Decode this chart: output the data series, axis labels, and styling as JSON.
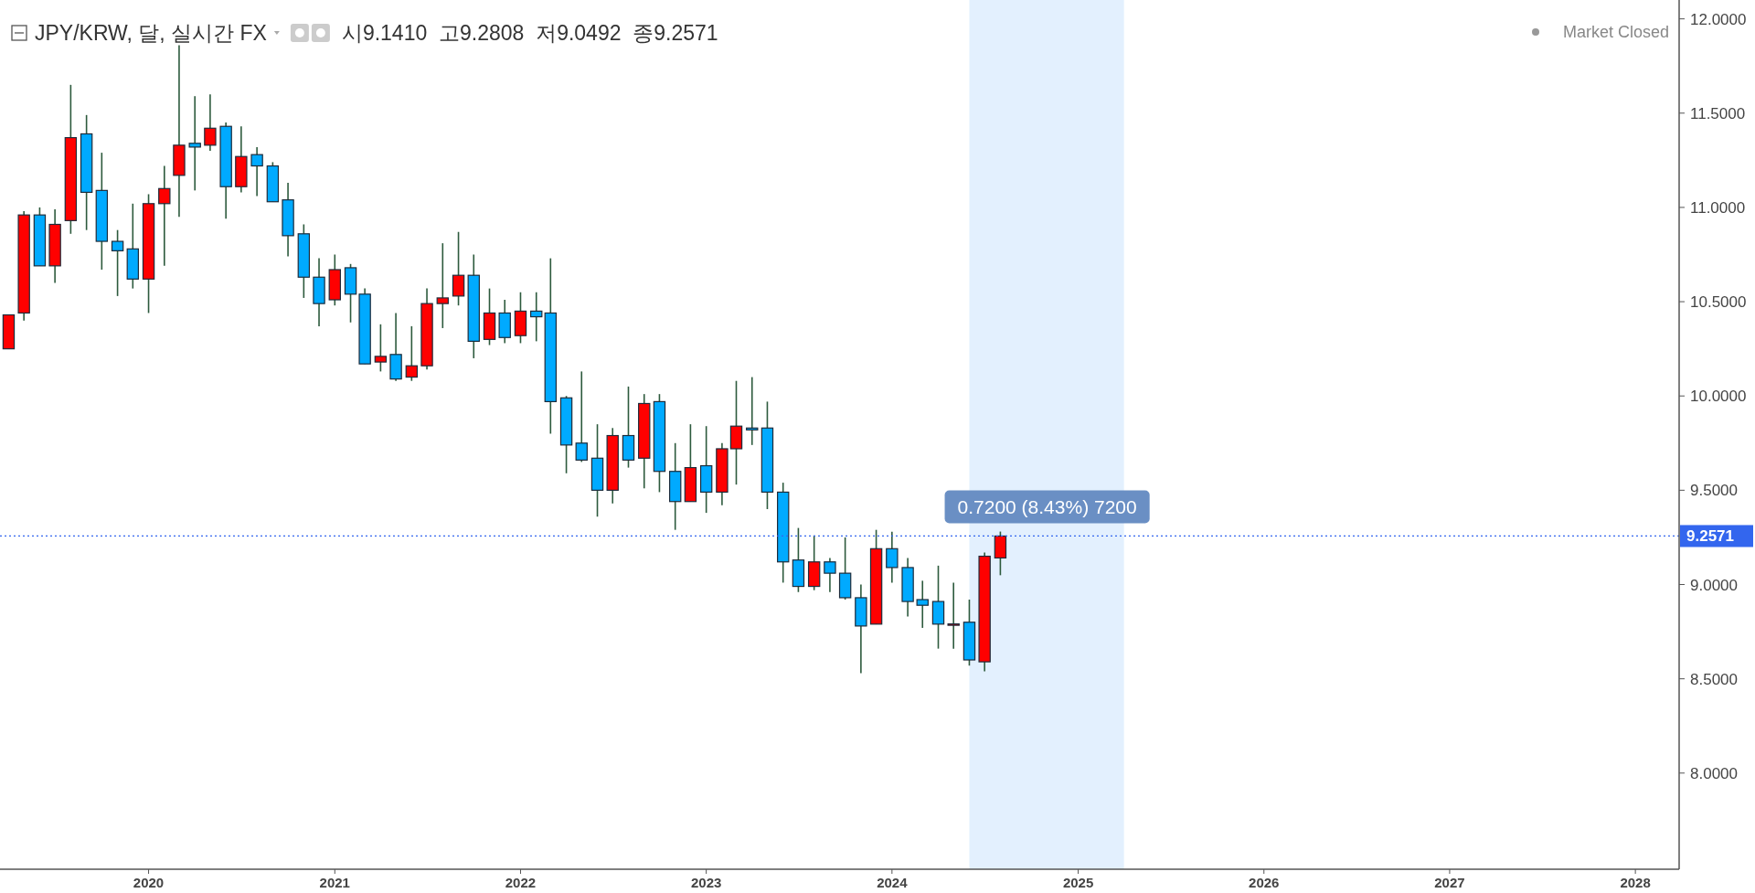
{
  "chart_data": {
    "type": "candlestick",
    "title": "JPY/KRW, 달, 실시간 FX",
    "subtitle": "시9.1410  고9.2808  저9.0492  종9.2571",
    "annotations": [
      "Market Closed",
      {
        "text": "0.7200 (8.43%) 7200",
        "x": "2024-11",
        "y": 9.2571
      }
    ],
    "x": [
      "2019-04",
      "2019-05",
      "2019-06",
      "2019-07",
      "2019-08",
      "2019-09",
      "2019-10",
      "2019-11",
      "2019-12",
      "2020-01",
      "2020-02",
      "2020-03",
      "2020-04",
      "2020-05",
      "2020-06",
      "2020-07",
      "2020-08",
      "2020-09",
      "2020-10",
      "2020-11",
      "2020-12",
      "2021-01",
      "2021-02",
      "2021-03",
      "2021-04",
      "2021-05",
      "2021-06",
      "2021-07",
      "2021-08",
      "2021-09",
      "2021-10",
      "2021-11",
      "2021-12",
      "2022-01",
      "2022-02",
      "2022-03",
      "2022-04",
      "2022-05",
      "2022-06",
      "2022-07",
      "2022-08",
      "2022-09",
      "2022-10",
      "2022-11",
      "2022-12",
      "2023-01",
      "2023-02",
      "2023-03",
      "2023-04",
      "2023-05",
      "2023-06",
      "2023-07",
      "2023-08",
      "2023-09",
      "2023-10",
      "2023-11",
      "2023-12",
      "2024-01",
      "2024-02",
      "2024-03",
      "2024-04",
      "2024-05",
      "2024-06",
      "2024-07",
      "2024-08"
    ],
    "ohlc": [
      [
        10.25,
        10.43,
        10.25,
        10.43
      ],
      [
        10.44,
        10.98,
        10.4,
        10.96
      ],
      [
        10.96,
        11.0,
        10.69,
        10.69
      ],
      [
        10.69,
        10.99,
        10.6,
        10.91
      ],
      [
        10.93,
        11.65,
        10.86,
        11.37
      ],
      [
        11.39,
        11.49,
        10.88,
        11.08
      ],
      [
        11.09,
        11.29,
        10.67,
        10.82
      ],
      [
        10.82,
        10.88,
        10.53,
        10.77
      ],
      [
        10.78,
        11.02,
        10.57,
        10.62
      ],
      [
        10.62,
        11.07,
        10.44,
        11.02
      ],
      [
        11.02,
        11.22,
        10.69,
        11.1
      ],
      [
        11.17,
        11.86,
        10.95,
        11.33
      ],
      [
        11.34,
        11.59,
        11.09,
        11.32
      ],
      [
        11.33,
        11.6,
        11.3,
        11.42
      ],
      [
        11.43,
        11.45,
        10.94,
        11.11
      ],
      [
        11.11,
        11.43,
        11.08,
        11.27
      ],
      [
        11.28,
        11.32,
        11.06,
        11.22
      ],
      [
        11.22,
        11.24,
        11.03,
        11.03
      ],
      [
        11.04,
        11.13,
        10.74,
        10.85
      ],
      [
        10.86,
        10.91,
        10.52,
        10.63
      ],
      [
        10.63,
        10.73,
        10.37,
        10.49
      ],
      [
        10.51,
        10.75,
        10.48,
        10.67
      ],
      [
        10.68,
        10.7,
        10.39,
        10.54
      ],
      [
        10.54,
        10.57,
        10.17,
        10.17
      ],
      [
        10.18,
        10.38,
        10.13,
        10.21
      ],
      [
        10.22,
        10.44,
        10.08,
        10.09
      ],
      [
        10.1,
        10.37,
        10.08,
        10.16
      ],
      [
        10.16,
        10.57,
        10.14,
        10.49
      ],
      [
        10.49,
        10.81,
        10.36,
        10.52
      ],
      [
        10.53,
        10.87,
        10.48,
        10.64
      ],
      [
        10.64,
        10.75,
        10.2,
        10.29
      ],
      [
        10.3,
        10.57,
        10.27,
        10.44
      ],
      [
        10.44,
        10.51,
        10.28,
        10.31
      ],
      [
        10.32,
        10.55,
        10.28,
        10.45
      ],
      [
        10.45,
        10.55,
        10.29,
        10.42
      ],
      [
        10.44,
        10.73,
        9.8,
        9.97
      ],
      [
        9.99,
        10.0,
        9.59,
        9.74
      ],
      [
        9.75,
        10.13,
        9.65,
        9.66
      ],
      [
        9.67,
        9.85,
        9.36,
        9.5
      ],
      [
        9.5,
        9.83,
        9.43,
        9.79
      ],
      [
        9.79,
        10.05,
        9.62,
        9.66
      ],
      [
        9.67,
        10.01,
        9.51,
        9.96
      ],
      [
        9.97,
        10.01,
        9.49,
        9.6
      ],
      [
        9.6,
        9.75,
        9.29,
        9.44
      ],
      [
        9.44,
        9.85,
        9.44,
        9.62
      ],
      [
        9.63,
        9.84,
        9.38,
        9.49
      ],
      [
        9.49,
        9.75,
        9.42,
        9.72
      ],
      [
        9.72,
        10.08,
        9.53,
        9.84
      ],
      [
        9.83,
        10.1,
        9.74,
        9.82
      ],
      [
        9.83,
        9.97,
        9.4,
        9.49
      ],
      [
        9.49,
        9.54,
        9.01,
        9.12
      ],
      [
        9.13,
        9.3,
        8.96,
        8.99
      ],
      [
        8.99,
        9.26,
        8.97,
        9.12
      ],
      [
        9.12,
        9.14,
        8.96,
        9.06
      ],
      [
        9.06,
        9.25,
        8.92,
        8.93
      ],
      [
        8.93,
        9.0,
        8.53,
        8.78
      ],
      [
        8.79,
        9.29,
        8.79,
        9.19
      ],
      [
        9.19,
        9.28,
        9.01,
        9.09
      ],
      [
        9.09,
        9.14,
        8.83,
        8.91
      ],
      [
        8.92,
        9.02,
        8.77,
        8.89
      ],
      [
        8.91,
        9.1,
        8.66,
        8.79
      ],
      [
        8.789,
        9.01,
        8.66,
        8.791
      ],
      [
        8.8,
        8.92,
        8.57,
        8.6
      ],
      [
        8.59,
        9.17,
        8.54,
        9.15
      ],
      [
        9.141,
        9.2808,
        9.0492,
        9.2571
      ]
    ],
    "colors": [
      "#ff0000",
      "#ff0000",
      "#00aaff",
      "#ff0000",
      "#ff0000",
      "#00aaff",
      "#00aaff",
      "#00aaff",
      "#00aaff",
      "#ff0000",
      "#ff0000",
      "#ff0000",
      "#00aaff",
      "#ff0000",
      "#00aaff",
      "#ff0000",
      "#00aaff",
      "#00aaff",
      "#00aaff",
      "#00aaff",
      "#00aaff",
      "#ff0000",
      "#00aaff",
      "#00aaff",
      "#ff0000",
      "#00aaff",
      "#ff0000",
      "#ff0000",
      "#ff0000",
      "#ff0000",
      "#00aaff",
      "#ff0000",
      "#00aaff",
      "#ff0000",
      "#00aaff",
      "#00aaff",
      "#00aaff",
      "#00aaff",
      "#00aaff",
      "#ff0000",
      "#00aaff",
      "#ff0000",
      "#00aaff",
      "#00aaff",
      "#ff0000",
      "#00aaff",
      "#ff0000",
      "#ff0000",
      "#00aaff",
      "#00aaff",
      "#00aaff",
      "#00aaff",
      "#ff0000",
      "#00aaff",
      "#00aaff",
      "#00aaff",
      "#ff0000",
      "#00aaff",
      "#00aaff",
      "#00aaff",
      "#00aaff",
      "#ff0000",
      "#00aaff",
      "#ff0000",
      "#ff0000"
    ],
    "xlim": [
      "2019-03-15",
      "2028-03-27"
    ],
    "xticks": [
      "2020",
      "2021",
      "2022",
      "2023",
      "2024",
      "2025",
      "2026",
      "2027",
      "2028"
    ],
    "ylim": [
      7.49,
      12.1
    ],
    "yticks": [
      {
        "value": 8,
        "label": "8.0000"
      },
      {
        "value": 8.5,
        "label": "8.5000"
      },
      {
        "value": 9,
        "label": "9.0000"
      },
      {
        "value": 9.5,
        "label": "9.5000"
      },
      {
        "value": 10,
        "label": "10.0000"
      },
      {
        "value": 10.5,
        "label": "10.5000"
      },
      {
        "value": 11,
        "label": "11.0000"
      },
      {
        "value": 11.5,
        "label": "11.5000"
      },
      {
        "value": 12,
        "label": "12.0000"
      }
    ],
    "ref_lines": [
      {
        "axis": "y",
        "value": 9.2571,
        "label": "9.2571",
        "color": "#3366ee",
        "line_style": "dotted"
      }
    ],
    "bands": [
      {
        "axis": "x",
        "from": "2024-06",
        "to": "2025-04",
        "color": "#e3f0fe"
      }
    ],
    "grid": false
  }
}
